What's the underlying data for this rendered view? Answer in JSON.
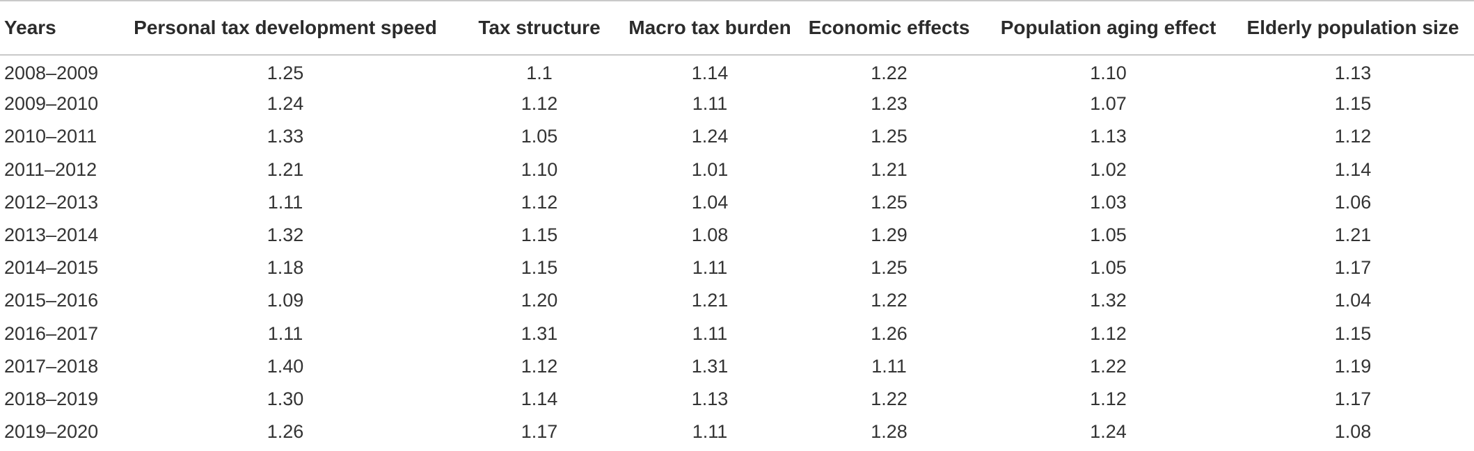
{
  "table": {
    "headers": [
      "Years",
      "Personal tax development speed",
      "Tax structure",
      "Macro tax burden",
      "Economic effects",
      "Population aging effect",
      "Elderly population size"
    ],
    "rows": [
      [
        "2008–2009",
        "1.25",
        "1.1",
        "1.14",
        "1.22",
        "1.10",
        "1.13"
      ],
      [
        "2009–2010",
        "1.24",
        "1.12",
        "1.11",
        "1.23",
        "1.07",
        "1.15"
      ],
      [
        "2010–2011",
        "1.33",
        "1.05",
        "1.24",
        "1.25",
        "1.13",
        "1.12"
      ],
      [
        "2011–2012",
        "1.21",
        "1.10",
        "1.01",
        "1.21",
        "1.02",
        "1.14"
      ],
      [
        "2012–2013",
        "1.11",
        "1.12",
        "1.04",
        "1.25",
        "1.03",
        "1.06"
      ],
      [
        "2013–2014",
        "1.32",
        "1.15",
        "1.08",
        "1.29",
        "1.05",
        "1.21"
      ],
      [
        "2014–2015",
        "1.18",
        "1.15",
        "1.11",
        "1.25",
        "1.05",
        "1.17"
      ],
      [
        "2015–2016",
        "1.09",
        "1.20",
        "1.21",
        "1.22",
        "1.32",
        "1.04"
      ],
      [
        "2016–2017",
        "1.11",
        "1.31",
        "1.11",
        "1.26",
        "1.12",
        "1.15"
      ],
      [
        "2017–2018",
        "1.40",
        "1.12",
        "1.31",
        "1.11",
        "1.22",
        "1.19"
      ],
      [
        "2018–2019",
        "1.30",
        "1.14",
        "1.13",
        "1.22",
        "1.12",
        "1.17"
      ],
      [
        "2019–2020",
        "1.26",
        "1.17",
        "1.11",
        "1.28",
        "1.24",
        "1.08"
      ]
    ]
  }
}
